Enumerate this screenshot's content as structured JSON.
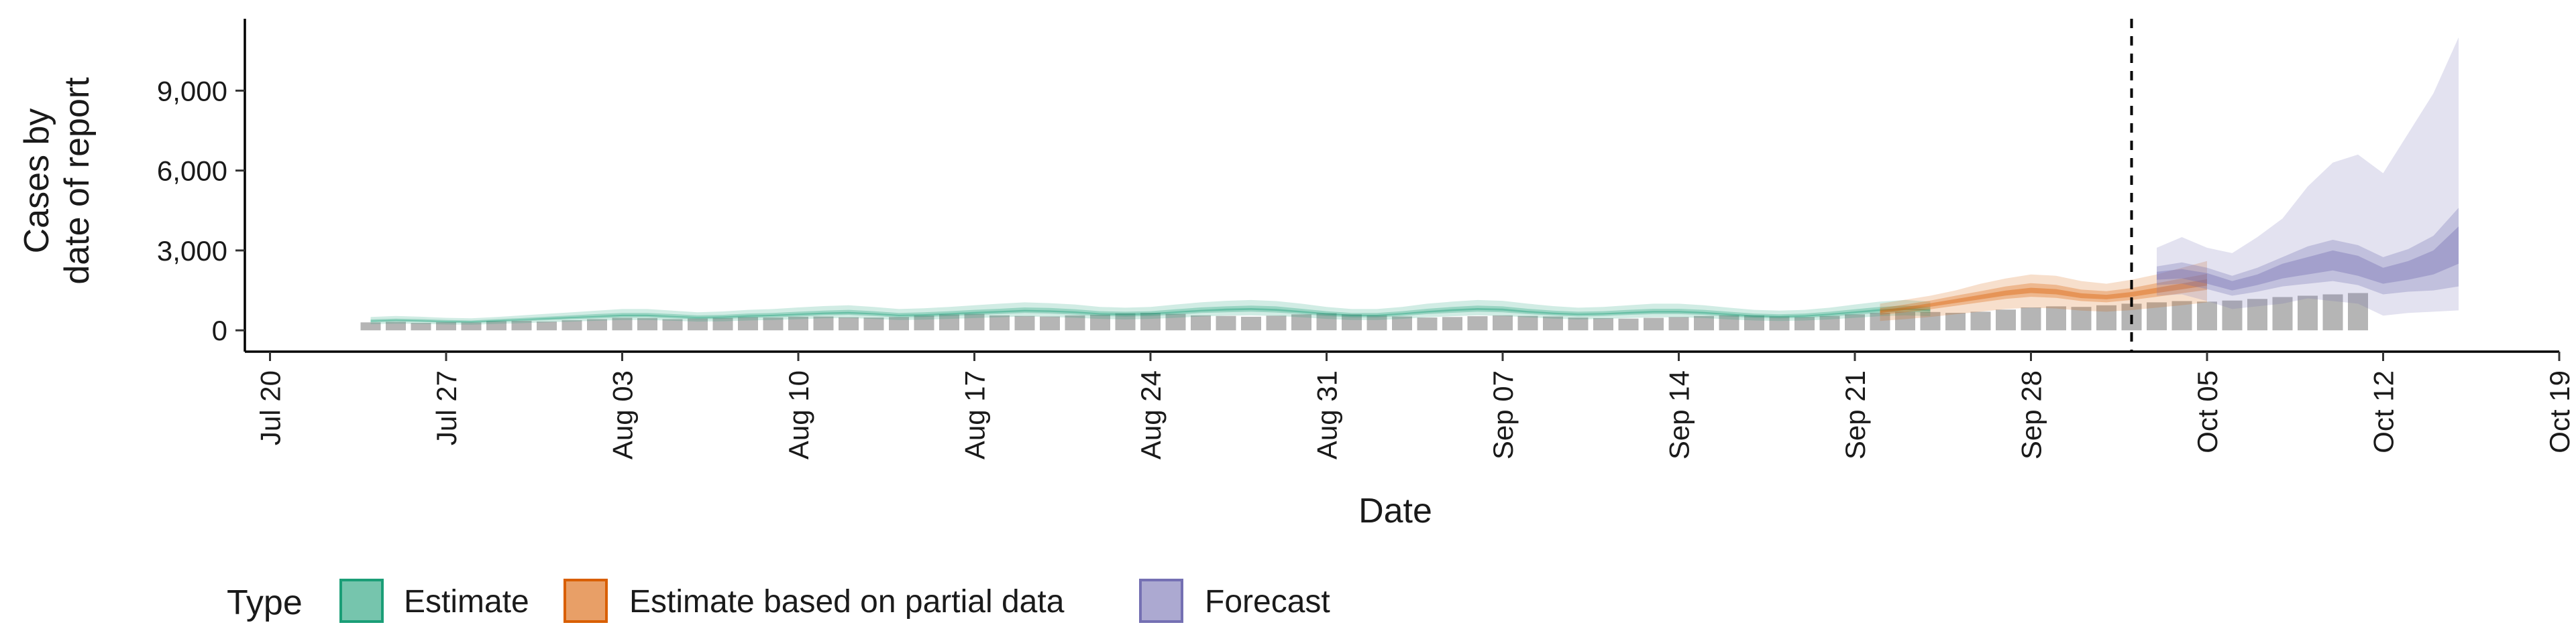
{
  "chart_data": {
    "type": "area",
    "xlabel": "Date",
    "ylabel_lines": [
      "Cases by",
      "date of report"
    ],
    "x_range": [
      "2020-07-19",
      "2020-10-19"
    ],
    "y_range": [
      -800,
      11700
    ],
    "y_ticks": [
      {
        "value": 0,
        "label": "0"
      },
      {
        "value": 3000,
        "label": "3,000"
      },
      {
        "value": 6000,
        "label": "6,000"
      },
      {
        "value": 9000,
        "label": "9,000"
      }
    ],
    "x_ticks": [
      {
        "date": "2020-07-20",
        "label": "Jul 20"
      },
      {
        "date": "2020-07-27",
        "label": "Jul 27"
      },
      {
        "date": "2020-08-03",
        "label": "Aug 03"
      },
      {
        "date": "2020-08-10",
        "label": "Aug 10"
      },
      {
        "date": "2020-08-17",
        "label": "Aug 17"
      },
      {
        "date": "2020-08-24",
        "label": "Aug 24"
      },
      {
        "date": "2020-08-31",
        "label": "Aug 31"
      },
      {
        "date": "2020-09-07",
        "label": "Sep 07"
      },
      {
        "date": "2020-09-14",
        "label": "Sep 14"
      },
      {
        "date": "2020-09-21",
        "label": "Sep 21"
      },
      {
        "date": "2020-09-28",
        "label": "Sep 28"
      },
      {
        "date": "2020-10-05",
        "label": "Oct 05"
      },
      {
        "date": "2020-10-12",
        "label": "Oct 12"
      },
      {
        "date": "2020-10-19",
        "label": "Oct 19"
      }
    ],
    "reported_cases": {
      "start": "2020-07-24",
      "values": [
        300,
        320,
        280,
        310,
        300,
        350,
        360,
        330,
        380,
        420,
        470,
        460,
        420,
        450,
        470,
        500,
        480,
        510,
        520,
        490,
        480,
        500,
        560,
        600,
        620,
        560,
        540,
        520,
        560,
        590,
        640,
        660,
        620,
        560,
        540,
        510,
        550,
        600,
        640,
        600,
        560,
        520,
        480,
        500,
        530,
        560,
        540,
        520,
        480,
        460,
        440,
        470,
        500,
        540,
        570,
        560,
        520,
        500,
        540,
        600,
        660,
        700,
        690,
        660,
        700,
        780,
        860,
        900,
        880,
        940,
        1000,
        1050,
        1100,
        1080,
        1120,
        1180,
        1250,
        1300,
        1350,
        1400
      ]
    },
    "report_date_line": "2020-10-02",
    "series": [
      {
        "name": "Estimate",
        "color": "#1B9E77",
        "start": "2020-07-24",
        "values": [
          350,
          380,
          360,
          330,
          320,
          360,
          400,
          440,
          480,
          520,
          560,
          560,
          520,
          480,
          500,
          540,
          560,
          600,
          640,
          660,
          620,
          560,
          580,
          620,
          660,
          700,
          740,
          720,
          680,
          620,
          600,
          620,
          680,
          740,
          780,
          800,
          770,
          700,
          620,
          560,
          560,
          620,
          700,
          760,
          800,
          780,
          700,
          640,
          600,
          620,
          660,
          700,
          700,
          660,
          600,
          540,
          520,
          540,
          600,
          680,
          760,
          800,
          760
        ],
        "lower_90": [
          230,
          250,
          240,
          220,
          210,
          240,
          270,
          300,
          330,
          360,
          390,
          390,
          360,
          330,
          340,
          370,
          390,
          420,
          450,
          460,
          430,
          390,
          400,
          430,
          460,
          490,
          520,
          500,
          470,
          430,
          410,
          430,
          470,
          520,
          550,
          560,
          540,
          490,
          430,
          390,
          390,
          430,
          490,
          530,
          560,
          540,
          490,
          440,
          410,
          430,
          460,
          490,
          490,
          460,
          410,
          370,
          350,
          370,
          410,
          470,
          530,
          560,
          530
        ],
        "upper_90": [
          500,
          540,
          510,
          470,
          450,
          500,
          560,
          620,
          680,
          740,
          800,
          800,
          740,
          680,
          710,
          770,
          800,
          860,
          910,
          940,
          880,
          800,
          830,
          880,
          940,
          1000,
          1050,
          1020,
          970,
          880,
          850,
          880,
          970,
          1050,
          1110,
          1140,
          1100,
          1000,
          880,
          800,
          800,
          880,
          1000,
          1080,
          1140,
          1110,
          1000,
          910,
          850,
          880,
          940,
          1000,
          1000,
          940,
          850,
          770,
          740,
          770,
          850,
          970,
          1080,
          1140,
          1080
        ],
        "lower_50": [
          300,
          330,
          310,
          290,
          280,
          310,
          350,
          380,
          420,
          450,
          490,
          490,
          450,
          420,
          430,
          470,
          490,
          520,
          560,
          580,
          540,
          490,
          500,
          540,
          580,
          610,
          650,
          630,
          590,
          540,
          520,
          540,
          590,
          650,
          680,
          700,
          670,
          610,
          540,
          490,
          490,
          540,
          610,
          660,
          700,
          680,
          610,
          560,
          520,
          540,
          580,
          610,
          610,
          580,
          520,
          470,
          450,
          470,
          520,
          590,
          660,
          700,
          660
        ],
        "upper_50": [
          410,
          440,
          420,
          390,
          370,
          420,
          460,
          510,
          560,
          610,
          650,
          650,
          610,
          560,
          580,
          630,
          650,
          700,
          740,
          770,
          720,
          650,
          680,
          720,
          770,
          810,
          860,
          840,
          790,
          720,
          700,
          720,
          790,
          860,
          900,
          930,
          900,
          810,
          720,
          650,
          650,
          720,
          810,
          880,
          930,
          900,
          810,
          740,
          700,
          720,
          770,
          810,
          810,
          770,
          700,
          630,
          600,
          630,
          700,
          790,
          880,
          930,
          880
        ],
        "lower_20": [
          335,
          365,
          345,
          315,
          305,
          345,
          385,
          420,
          460,
          500,
          535,
          535,
          500,
          460,
          480,
          515,
          535,
          575,
          610,
          630,
          595,
          535,
          555,
          595,
          630,
          670,
          710,
          690,
          650,
          595,
          575,
          595,
          650,
          710,
          745,
          765,
          735,
          670,
          595,
          535,
          535,
          595,
          670,
          725,
          765,
          745,
          670,
          610,
          575,
          595,
          630,
          670,
          670,
          630,
          575,
          515,
          500,
          515,
          575,
          650,
          725,
          765,
          725
        ],
        "upper_20": [
          365,
          395,
          375,
          345,
          335,
          375,
          415,
          460,
          500,
          540,
          585,
          585,
          540,
          500,
          520,
          565,
          585,
          625,
          670,
          690,
          645,
          585,
          605,
          645,
          690,
          730,
          770,
          750,
          710,
          645,
          625,
          645,
          710,
          770,
          815,
          835,
          805,
          730,
          645,
          585,
          585,
          645,
          730,
          795,
          835,
          815,
          730,
          670,
          625,
          645,
          690,
          730,
          730,
          690,
          625,
          565,
          540,
          565,
          625,
          710,
          795,
          835,
          795
        ]
      },
      {
        "name": "Estimate based on partial data",
        "color": "#D95F02",
        "start": "2020-09-22",
        "values": [
          700,
          820,
          950,
          1100,
          1250,
          1400,
          1500,
          1450,
          1300,
          1250,
          1350,
          1500,
          1650,
          1800
        ],
        "lower_90": [
          350,
          420,
          500,
          600,
          700,
          800,
          850,
          820,
          740,
          700,
          760,
          850,
          940,
          1050
        ],
        "upper_90": [
          1000,
          1150,
          1300,
          1500,
          1750,
          1950,
          2100,
          2050,
          1850,
          1750,
          1900,
          2100,
          2350,
          2600
        ],
        "lower_50": [
          580,
          680,
          790,
          920,
          1050,
          1180,
          1260,
          1220,
          1100,
          1050,
          1140,
          1260,
          1390,
          1520
        ],
        "upper_50": [
          830,
          970,
          1120,
          1300,
          1470,
          1650,
          1770,
          1710,
          1530,
          1470,
          1590,
          1770,
          1950,
          2120
        ],
        "lower_20": [
          650,
          765,
          885,
          1025,
          1165,
          1305,
          1400,
          1350,
          1210,
          1165,
          1260,
          1400,
          1540,
          1680
        ],
        "upper_20": [
          750,
          875,
          1015,
          1175,
          1335,
          1495,
          1600,
          1550,
          1390,
          1335,
          1440,
          1600,
          1760,
          1920
        ]
      },
      {
        "name": "Forecast",
        "color": "#7570B3",
        "start": "2020-10-03",
        "values": [
          2050,
          2150,
          1950,
          1650,
          1900,
          2200,
          2400,
          2600,
          2350,
          2000,
          2200,
          2500,
          3200
        ],
        "lower_90": [
          1300,
          1350,
          1100,
          800,
          900,
          1000,
          1200,
          1100,
          1000,
          550,
          650,
          700,
          750
        ],
        "upper_90": [
          3100,
          3500,
          3100,
          2900,
          3500,
          4200,
          5400,
          6300,
          6600,
          5900,
          7400,
          8900,
          11000
        ],
        "lower_50": [
          1700,
          1750,
          1550,
          1300,
          1450,
          1650,
          1750,
          1850,
          1700,
          1350,
          1450,
          1500,
          1650
        ],
        "upper_50": [
          2400,
          2550,
          2350,
          2050,
          2350,
          2750,
          3150,
          3400,
          3200,
          2750,
          3050,
          3550,
          4600
        ],
        "lower_20": [
          1900,
          1950,
          1750,
          1500,
          1700,
          1950,
          2100,
          2250,
          2050,
          1750,
          1900,
          2100,
          2500
        ],
        "upper_20": [
          2200,
          2300,
          2150,
          1850,
          2100,
          2500,
          2750,
          3000,
          2800,
          2350,
          2600,
          3000,
          3900
        ]
      }
    ],
    "legend": {
      "title": "Type",
      "position": "bottom-left",
      "items": [
        {
          "label": "Estimate",
          "color": "#1B9E77"
        },
        {
          "label": "Estimate based on partial data",
          "color": "#D95F02"
        },
        {
          "label": "Forecast",
          "color": "#7570B3"
        }
      ]
    }
  }
}
